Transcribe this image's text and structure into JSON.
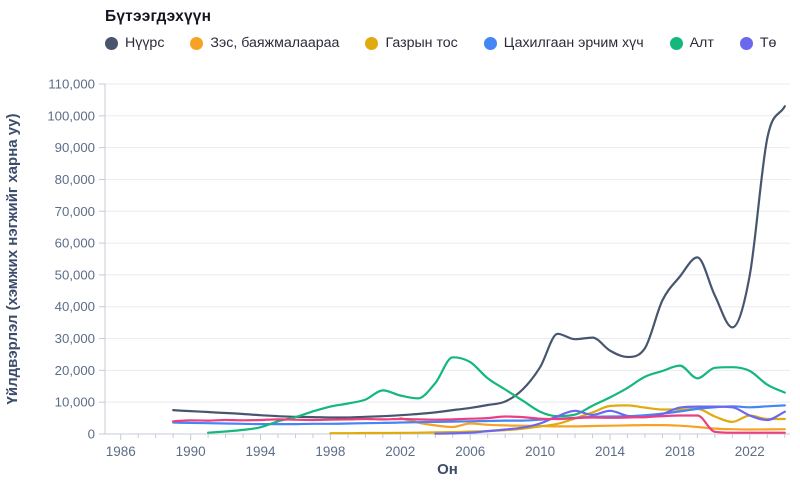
{
  "chart_data": {
    "type": "line",
    "legend_title": "Бүтээгдэхүүн",
    "xlabel": "Он",
    "ylabel": "Үйлдвэрлэл (хэмжих нэгжийг харна уу)",
    "xlim": [
      1985.1,
      2024.3
    ],
    "ylim": [
      0,
      110000
    ],
    "y_tick_step": 10000,
    "x_tick_labels": [
      1986,
      1990,
      1994,
      1998,
      2002,
      2006,
      2010,
      2014,
      2018,
      2022
    ],
    "x_minor_tick_start": 1986,
    "x_minor_tick_end": 2024,
    "grid": "horizontal",
    "legend_position": "top",
    "series": [
      {
        "name": "Нүүрс",
        "color": "#47566e",
        "in_legend": true,
        "start_year": 1989,
        "values": [
          7500,
          7200,
          6900,
          6600,
          6300,
          5900,
          5600,
          5400,
          5300,
          5200,
          5200,
          5400,
          5600,
          5900,
          6300,
          6800,
          7500,
          8200,
          9100,
          10200,
          14000,
          21000,
          31500,
          29800,
          30300,
          26200,
          24200,
          27000,
          42000,
          49500,
          55500,
          43500,
          33500,
          50000,
          93000,
          103000
        ]
      },
      {
        "name": "Зэс, баяжмалаараа",
        "color": "#f6a325",
        "in_legend": true,
        "start_year": 2002,
        "values": [
          5000,
          3600,
          2700,
          2200,
          3300,
          2900,
          2700,
          2600,
          2500,
          2400,
          2400,
          2500,
          2600,
          2700,
          2800,
          2800,
          2600,
          2200,
          1700,
          1500,
          1400,
          1450,
          1500
        ]
      },
      {
        "name": "Газрын тос",
        "color": "#dfab0d",
        "in_legend": true,
        "start_year": 1998,
        "values": [
          250,
          250,
          300,
          300,
          350,
          400,
          500,
          600,
          750,
          900,
          1200,
          1700,
          2400,
          3200,
          4900,
          6800,
          8800,
          9000,
          8300,
          7700,
          7700,
          7900,
          5500,
          3800,
          5800,
          4700,
          4700
        ]
      },
      {
        "name": "Цахилгаан эрчим хүч",
        "color": "#4486f4",
        "in_legend": true,
        "start_year": 1989,
        "values": [
          3600,
          3500,
          3400,
          3300,
          3200,
          3100,
          3100,
          3100,
          3200,
          3200,
          3300,
          3400,
          3500,
          3600,
          3700,
          3800,
          3900,
          4000,
          4100,
          4200,
          4200,
          4500,
          4800,
          5100,
          5400,
          5500,
          5600,
          5900,
          6400,
          7100,
          7900,
          8400,
          8700,
          8400,
          8700,
          9000
        ]
      },
      {
        "name": "Алт",
        "color": "#14b87d",
        "in_legend": true,
        "start_year": 1991,
        "values": [
          400,
          800,
          1300,
          2100,
          4000,
          5300,
          7100,
          8600,
          9600,
          10800,
          13700,
          12100,
          11200,
          16000,
          24100,
          22600,
          17500,
          14000,
          10500,
          7000,
          5600,
          6100,
          8900,
          11500,
          14500,
          18000,
          19800,
          21500,
          17500,
          20800,
          21000,
          19800,
          15500,
          13000
        ]
      },
      {
        "name": "Тө",
        "color": "#6b67ee",
        "in_legend": true,
        "legend_truncated": true,
        "start_year": 2004,
        "values": [
          100,
          200,
          400,
          900,
          1400,
          2000,
          3300,
          5600,
          7300,
          6000,
          7300,
          5700,
          5300,
          6300,
          8300,
          8600,
          8600,
          8400,
          5800,
          4400,
          7000
        ]
      },
      {
        "name": "",
        "color": "#ec3f7f",
        "in_legend": false,
        "start_year": 1989,
        "values": [
          4000,
          4300,
          4200,
          4400,
          4300,
          4400,
          4600,
          4500,
          4400,
          4500,
          4600,
          4700,
          4600,
          4700,
          4600,
          4500,
          4600,
          4800,
          5000,
          5500,
          5300,
          4800,
          4700,
          5000,
          5200,
          5100,
          5200,
          5300,
          5600,
          5800,
          5800,
          700,
          400,
          400,
          400,
          400
        ]
      }
    ]
  },
  "styles": {
    "grid_color": "#ebebf0",
    "axis_line_color": "#c8cbd4",
    "tick_label_color": "#5d6d89",
    "axis_title_color": "#3c4d6b",
    "legend_text_color": "#2b2b3a",
    "title_color": "#15151f",
    "background": "#ffffff"
  }
}
